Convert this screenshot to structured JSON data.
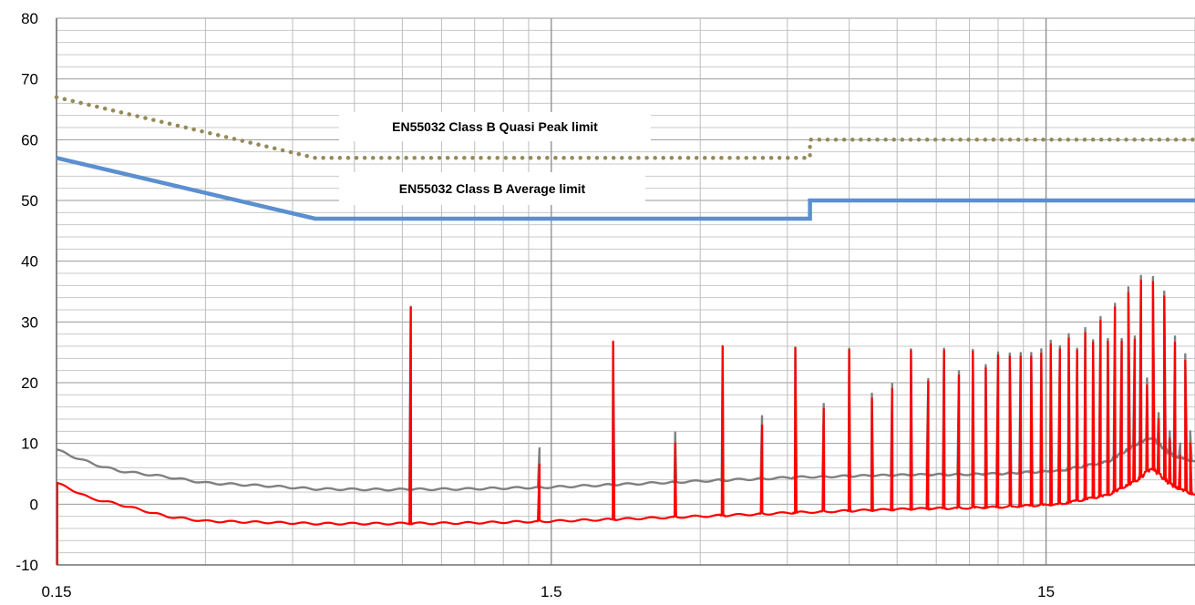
{
  "chart_data": {
    "type": "line",
    "title": "",
    "xlabel": "",
    "ylabel": "",
    "x_scale": "log",
    "xlim": [
      0.15,
      30
    ],
    "ylim": [
      -10,
      80
    ],
    "grid": true,
    "x_tick_labels": [
      "0.15",
      "1.5",
      "15"
    ],
    "y_ticks": [
      -10,
      0,
      10,
      20,
      30,
      40,
      50,
      60,
      70,
      80
    ],
    "y_tick_labels": [
      "-10",
      "0",
      "10",
      "20",
      "30",
      "40",
      "50",
      "60",
      "70",
      "80"
    ],
    "annotations": [
      {
        "text": "EN55032 Class B Quasi Peak limit",
        "series": "quasi_peak_limit"
      },
      {
        "text": "EN55032 Class B Average limit",
        "series": "average_limit"
      }
    ],
    "series": [
      {
        "id": "quasi_peak_limit",
        "color": "#958a5a",
        "style": "dotted",
        "points": [
          [
            0.15,
            67
          ],
          [
            0.5,
            57
          ],
          [
            5.0,
            57
          ],
          [
            5.0,
            60
          ],
          [
            30,
            60
          ]
        ]
      },
      {
        "id": "average_limit",
        "color": "#5b8fd0",
        "style": "solid",
        "points": [
          [
            0.15,
            57
          ],
          [
            0.5,
            47
          ],
          [
            5.0,
            47
          ],
          [
            5.0,
            50
          ],
          [
            30,
            50
          ]
        ]
      },
      {
        "id": "peak_trace",
        "color": "#808080",
        "style": "solid",
        "baseline": [
          [
            0.15,
            9
          ],
          [
            0.16,
            8
          ],
          [
            0.18,
            6.5
          ],
          [
            0.2,
            5.5
          ],
          [
            0.25,
            4.5
          ],
          [
            0.3,
            3.5
          ],
          [
            0.4,
            3
          ],
          [
            0.5,
            2.5
          ],
          [
            0.7,
            2.4
          ],
          [
            1.0,
            2.5
          ],
          [
            1.5,
            2.8
          ],
          [
            2.0,
            3.2
          ],
          [
            3.0,
            3.8
          ],
          [
            5.0,
            4.5
          ],
          [
            8.0,
            4.8
          ],
          [
            12.0,
            5
          ],
          [
            16.0,
            5.5
          ],
          [
            20.0,
            7
          ],
          [
            23.0,
            10
          ],
          [
            24.5,
            11
          ],
          [
            27.0,
            8
          ],
          [
            30.0,
            7
          ]
        ],
        "peaks": [
          [
            0.78,
            32.5
          ],
          [
            1.42,
            9.2
          ],
          [
            2.0,
            26.6
          ],
          [
            2.67,
            11.8
          ],
          [
            3.33,
            26
          ],
          [
            4.0,
            14.5
          ],
          [
            4.67,
            25.8
          ],
          [
            5.33,
            16.5
          ],
          [
            6.0,
            25.6
          ],
          [
            6.67,
            18.2
          ],
          [
            7.33,
            19.8
          ],
          [
            8.0,
            25.5
          ],
          [
            8.67,
            20.6
          ],
          [
            9.33,
            25.6
          ],
          [
            10.0,
            21.9
          ],
          [
            10.67,
            25.4
          ],
          [
            11.33,
            22.9
          ],
          [
            12.0,
            25
          ],
          [
            12.67,
            24.8
          ],
          [
            13.33,
            24.9
          ],
          [
            14.0,
            24.9
          ],
          [
            14.67,
            25.5
          ],
          [
            15.33,
            26.9
          ],
          [
            16.0,
            26
          ],
          [
            16.67,
            28
          ],
          [
            17.33,
            25.6
          ],
          [
            18.0,
            29
          ],
          [
            18.67,
            27
          ],
          [
            19.33,
            30.8
          ],
          [
            20.0,
            27.2
          ],
          [
            20.67,
            33
          ],
          [
            21.33,
            27.2
          ],
          [
            22.0,
            35.7
          ],
          [
            22.67,
            27.6
          ],
          [
            23.33,
            37.6
          ],
          [
            24.0,
            20.7
          ],
          [
            24.67,
            37.4
          ],
          [
            25.33,
            15
          ],
          [
            26.0,
            35
          ],
          [
            26.67,
            12
          ],
          [
            27.33,
            27.6
          ],
          [
            28.0,
            10
          ],
          [
            28.67,
            24.7
          ],
          [
            29.33,
            12
          ]
        ]
      },
      {
        "id": "average_trace",
        "color": "#ff0000",
        "style": "solid",
        "baseline": [
          [
            0.15,
            3.5
          ],
          [
            0.155,
            3
          ],
          [
            0.165,
            2
          ],
          [
            0.175,
            1
          ],
          [
            0.2,
            0
          ],
          [
            0.25,
            -2
          ],
          [
            0.3,
            -2.8
          ],
          [
            0.4,
            -3
          ],
          [
            0.5,
            -3.2
          ],
          [
            0.7,
            -3.2
          ],
          [
            1.0,
            -3.1
          ],
          [
            1.5,
            -2.8
          ],
          [
            2.0,
            -2.5
          ],
          [
            3.0,
            -2
          ],
          [
            5.0,
            -1.3
          ],
          [
            8.0,
            -0.8
          ],
          [
            12.0,
            -0.5
          ],
          [
            16.0,
            0
          ],
          [
            20.0,
            1.5
          ],
          [
            23.0,
            4
          ],
          [
            24.5,
            6
          ],
          [
            27.0,
            3
          ],
          [
            30.0,
            1.5
          ]
        ],
        "peaks": [
          [
            0.78,
            32.4
          ],
          [
            1.42,
            6.5
          ],
          [
            2.0,
            26.8
          ],
          [
            2.67,
            10
          ],
          [
            3.33,
            26
          ],
          [
            4.0,
            13
          ],
          [
            4.67,
            25.7
          ],
          [
            5.33,
            15.7
          ],
          [
            6.0,
            25.4
          ],
          [
            6.67,
            17.4
          ],
          [
            7.33,
            19
          ],
          [
            8.0,
            25.3
          ],
          [
            8.67,
            20.2
          ],
          [
            9.33,
            25.3
          ],
          [
            10.0,
            21.2
          ],
          [
            10.67,
            25.1
          ],
          [
            11.33,
            22.4
          ],
          [
            12.0,
            24.5
          ],
          [
            12.67,
            24.3
          ],
          [
            13.33,
            24.3
          ],
          [
            14.0,
            24.3
          ],
          [
            14.67,
            24.8
          ],
          [
            15.33,
            26.3
          ],
          [
            16.0,
            25.5
          ],
          [
            16.67,
            27.3
          ],
          [
            17.33,
            25.3
          ],
          [
            18.0,
            28.2
          ],
          [
            18.67,
            26.6
          ],
          [
            19.33,
            30.2
          ],
          [
            20.0,
            26.8
          ],
          [
            20.67,
            32.4
          ],
          [
            21.33,
            26.8
          ],
          [
            22.0,
            34.8
          ],
          [
            22.67,
            27.1
          ],
          [
            23.33,
            36.8
          ],
          [
            24.0,
            19.6
          ],
          [
            24.67,
            36.6
          ],
          [
            25.33,
            14
          ],
          [
            26.0,
            34.2
          ],
          [
            26.67,
            10.8
          ],
          [
            27.33,
            26.6
          ],
          [
            28.0,
            8
          ],
          [
            28.67,
            23.6
          ],
          [
            29.33,
            10
          ]
        ]
      }
    ]
  }
}
